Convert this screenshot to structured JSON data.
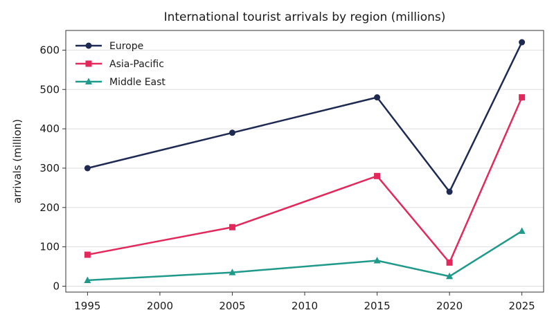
{
  "chart_data": {
    "type": "line",
    "title": "International tourist arrivals by region (millions)",
    "xlabel": "",
    "ylabel": "arrivals (million)",
    "x": [
      1995,
      2005,
      2015,
      2020,
      2025
    ],
    "xticks": [
      1995,
      2000,
      2005,
      2010,
      2015,
      2020,
      2025
    ],
    "yticks": [
      0,
      100,
      200,
      300,
      400,
      500,
      600
    ],
    "xlim": [
      1993.5,
      2026.5
    ],
    "ylim": [
      -15,
      650
    ],
    "grid": "horizontal",
    "legend_position": "top-left",
    "series": [
      {
        "name": "Europe",
        "values": [
          300,
          390,
          480,
          240,
          620
        ],
        "color": "#1f2a52",
        "marker": "circle"
      },
      {
        "name": "Asia-Pacific",
        "values": [
          80,
          150,
          280,
          60,
          480
        ],
        "color": "#e3295b",
        "marker": "square"
      },
      {
        "name": "Middle East",
        "values": [
          15,
          35,
          65,
          25,
          140
        ],
        "color": "#1f9a8a",
        "marker": "triangle"
      }
    ]
  }
}
